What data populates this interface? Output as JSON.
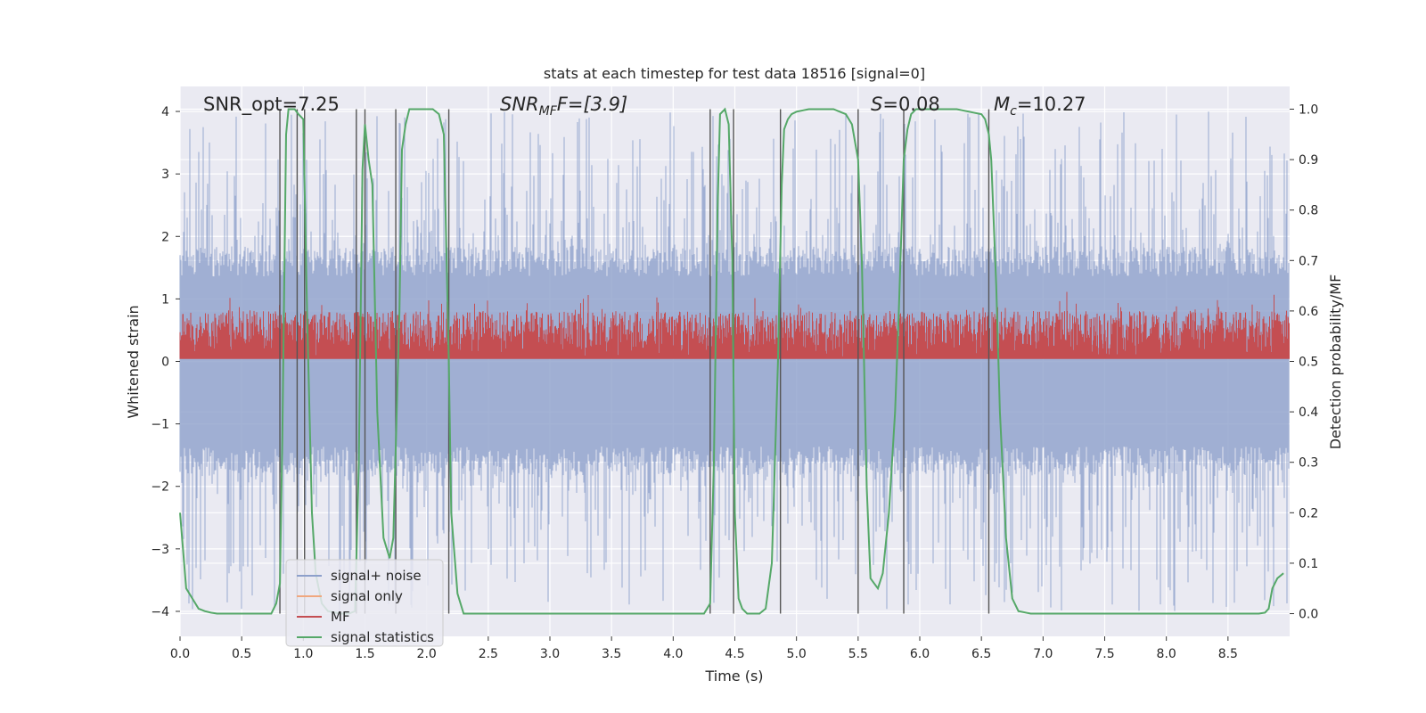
{
  "chart_data": {
    "type": "line",
    "title": "stats at each timestep for test data 18516 [signal=0]",
    "xlabel": "Time (s)",
    "ylabel": "Whitened strain",
    "ylabel_right": "Detection probability/MF",
    "xlim": [
      0.0,
      9.0
    ],
    "ylim": [
      -4.4,
      4.4
    ],
    "ylim_right": [
      -0.045,
      1.045
    ],
    "x_ticks": [
      "0.0",
      "0.5",
      "1.0",
      "1.5",
      "2.0",
      "2.5",
      "3.0",
      "3.5",
      "4.0",
      "4.5",
      "5.0",
      "5.5",
      "6.0",
      "6.5",
      "7.0",
      "7.5",
      "8.0",
      "8.5"
    ],
    "y_ticks": [
      "−4",
      "−3",
      "−2",
      "−1",
      "0",
      "1",
      "2",
      "3",
      "4"
    ],
    "y_ticks_right": [
      "0.0",
      "0.1",
      "0.2",
      "0.3",
      "0.4",
      "0.5",
      "0.6",
      "0.7",
      "0.8",
      "0.9",
      "1.0"
    ],
    "annotations": {
      "snr_opt": "SNR_opt=7.25",
      "snr_mf_base": "SNR",
      "snr_mf_sub": "MF",
      "snr_mf_rest": "F=[3.9]",
      "s_base": "S",
      "s_rest": "=0.08",
      "mc_base": "M",
      "mc_sub": "c",
      "mc_rest": "=10.27"
    },
    "legend": {
      "position": "lower-left",
      "entries": [
        {
          "label": "signal+ noise",
          "color": "#8da0cb"
        },
        {
          "label": "signal only",
          "color": "#f0a77f"
        },
        {
          "label": "MF",
          "color": "#c44e52"
        },
        {
          "label": "signal statistics",
          "color": "#55a868"
        }
      ]
    },
    "vertical_lines_s": [
      0.81,
      0.95,
      1.01,
      1.43,
      1.5,
      1.75,
      2.18,
      4.3,
      4.49,
      4.87,
      5.5,
      5.87,
      6.56
    ],
    "series": [
      {
        "name": "signal statistics",
        "color": "#55a868",
        "x": [
          0.0,
          0.05,
          0.1,
          0.15,
          0.2,
          0.25,
          0.3,
          0.4,
          0.5,
          0.6,
          0.7,
          0.74,
          0.78,
          0.81,
          0.83,
          0.86,
          0.88,
          0.93,
          0.96,
          1.0,
          1.03,
          1.07,
          1.1,
          1.15,
          1.2,
          1.3,
          1.37,
          1.42,
          1.45,
          1.48,
          1.5,
          1.53,
          1.56,
          1.6,
          1.65,
          1.7,
          1.73,
          1.78,
          1.8,
          1.83,
          1.86,
          1.9,
          1.95,
          2.0,
          2.05,
          2.1,
          2.14,
          2.18,
          2.2,
          2.25,
          2.3,
          2.5,
          3.0,
          3.5,
          4.0,
          4.15,
          4.25,
          4.3,
          4.33,
          4.36,
          4.38,
          4.42,
          4.45,
          4.48,
          4.5,
          4.53,
          4.56,
          4.6,
          4.65,
          4.7,
          4.75,
          4.8,
          4.85,
          4.88,
          4.9,
          4.93,
          4.96,
          5.0,
          5.1,
          5.2,
          5.3,
          5.4,
          5.45,
          5.5,
          5.53,
          5.57,
          5.6,
          5.63,
          5.66,
          5.7,
          5.75,
          5.8,
          5.83,
          5.87,
          5.9,
          5.93,
          5.97,
          6.0,
          6.1,
          6.2,
          6.3,
          6.4,
          6.5,
          6.53,
          6.56,
          6.58,
          6.62,
          6.65,
          6.7,
          6.75,
          6.8,
          6.9,
          7.0,
          7.5,
          8.0,
          8.5,
          8.75,
          8.8,
          8.83,
          8.86,
          8.9,
          8.95
        ],
        "values": [
          0.2,
          0.05,
          0.03,
          0.01,
          0.005,
          0.002,
          0.0,
          0.0,
          0.0,
          0.0,
          0.0,
          0.0,
          0.02,
          0.06,
          0.35,
          0.95,
          1.0,
          1.0,
          0.99,
          0.98,
          0.6,
          0.2,
          0.08,
          0.02,
          0.005,
          0.0,
          0.0,
          0.005,
          0.3,
          0.88,
          0.97,
          0.9,
          0.85,
          0.4,
          0.15,
          0.11,
          0.15,
          0.6,
          0.92,
          0.97,
          1.0,
          1.0,
          1.0,
          1.0,
          1.0,
          0.99,
          0.95,
          0.5,
          0.2,
          0.04,
          0.0,
          0.0,
          0.0,
          0.0,
          0.0,
          0.0,
          0.0,
          0.02,
          0.3,
          0.8,
          0.99,
          1.0,
          0.97,
          0.7,
          0.2,
          0.03,
          0.01,
          0.0,
          0.0,
          0.0,
          0.01,
          0.1,
          0.5,
          0.85,
          0.96,
          0.98,
          0.99,
          0.995,
          1.0,
          1.0,
          1.0,
          0.99,
          0.97,
          0.9,
          0.7,
          0.25,
          0.07,
          0.06,
          0.05,
          0.08,
          0.2,
          0.4,
          0.6,
          0.9,
          0.96,
          0.99,
          1.0,
          1.0,
          1.0,
          1.0,
          1.0,
          0.995,
          0.99,
          0.98,
          0.95,
          0.9,
          0.65,
          0.4,
          0.15,
          0.03,
          0.005,
          0.0,
          0.0,
          0.0,
          0.0,
          0.0,
          0.0,
          0.002,
          0.01,
          0.05,
          0.07,
          0.08
        ]
      },
      {
        "name": "MF",
        "color": "#c44e52",
        "band_right_axis": [
          0.51,
          0.6
        ],
        "peak_right_axis": 0.64
      },
      {
        "name": "signal+ noise",
        "color": "#8da0cb",
        "band_strain": [
          -1.6,
          1.6
        ],
        "peak_strain": [
          -4.0,
          4.0
        ]
      },
      {
        "name": "signal only",
        "color": "#f0a77f",
        "values": [
          0.0
        ]
      }
    ]
  }
}
